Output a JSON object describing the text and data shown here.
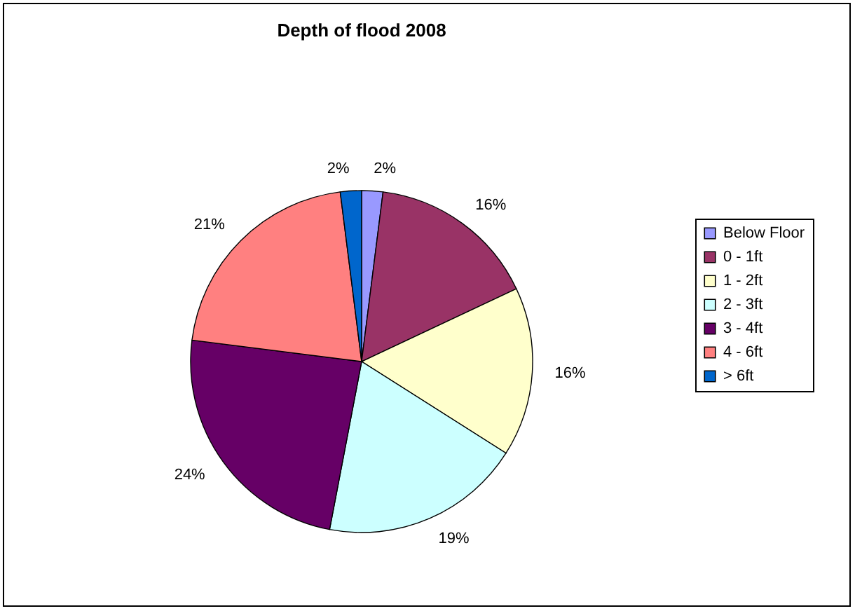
{
  "chart_data": {
    "type": "pie",
    "title": "Depth of flood 2008",
    "categories": [
      "Below Floor",
      "0 - 1ft",
      "1 - 2ft",
      "2 - 3ft",
      "3 - 4ft",
      "4 - 6ft",
      "> 6ft"
    ],
    "values": [
      2,
      16,
      16,
      19,
      24,
      21,
      2
    ],
    "colors": [
      "#9999ff",
      "#993366",
      "#ffffcc",
      "#ccffff",
      "#660066",
      "#ff8080",
      "#0066cc"
    ],
    "value_labels": [
      "2%",
      "16%",
      "16%",
      "19%",
      "24%",
      "21%",
      "2%"
    ],
    "legend": "right"
  }
}
